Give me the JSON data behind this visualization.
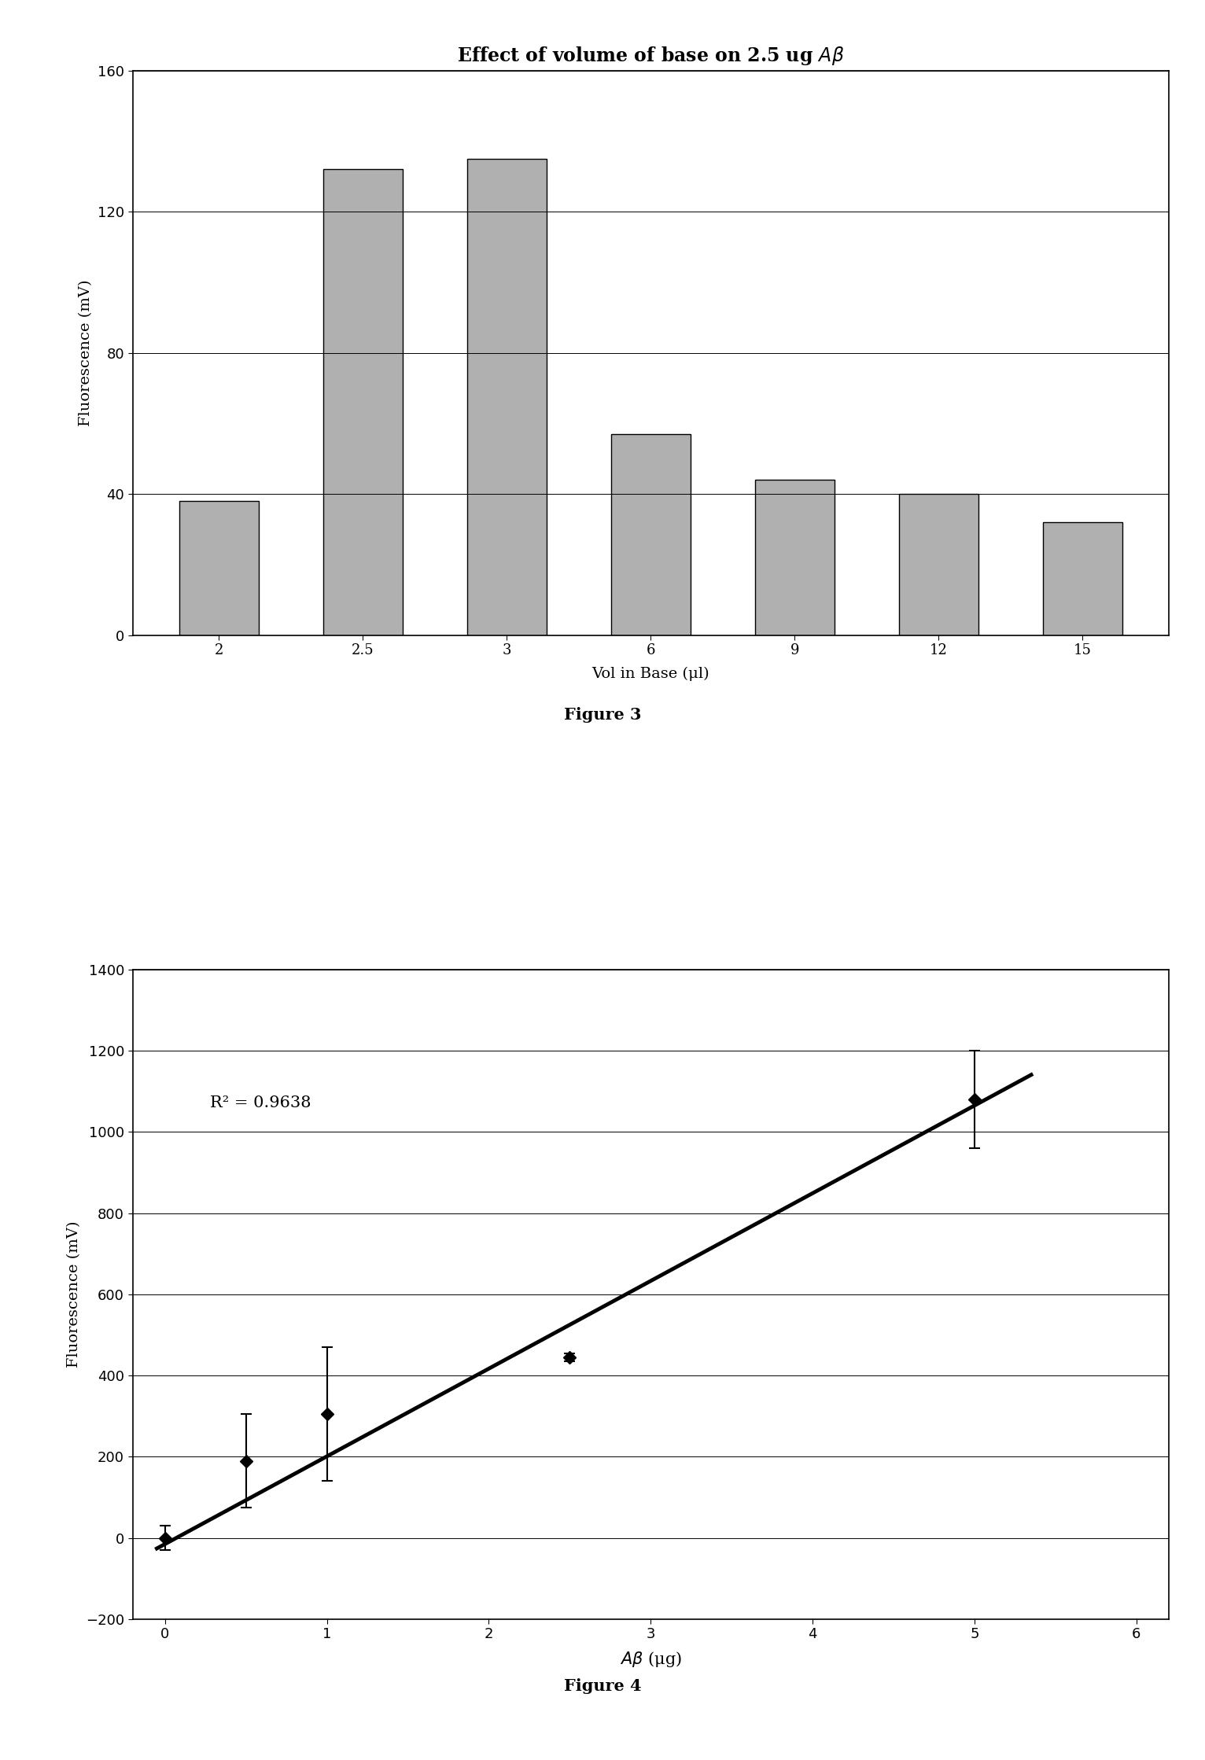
{
  "fig1": {
    "title": "Effect of volume of base on 2.5 ug $A\\beta$",
    "xlabel": "Vol in Base (μl)",
    "ylabel": "Fluorescence (mV)",
    "categories": [
      "2",
      "2.5",
      "3",
      "6",
      "9",
      "12",
      "15"
    ],
    "values": [
      38,
      132,
      135,
      57,
      44,
      40,
      32
    ],
    "ylim": [
      0,
      160
    ],
    "yticks": [
      0,
      40,
      80,
      120,
      160
    ],
    "bar_color": "#b0b0b0",
    "bar_edge_color": "#000000",
    "figure_label": "Figure 3"
  },
  "fig2": {
    "xlabel": "$A\\beta$ (μg)",
    "ylabel": "Fluorescence (mV)",
    "x": [
      0,
      0.5,
      1.0,
      2.5,
      5.0
    ],
    "y": [
      0,
      190,
      305,
      445,
      1080
    ],
    "yerr": [
      30,
      115,
      165,
      10,
      120
    ],
    "xlim": [
      -0.2,
      6.2
    ],
    "ylim": [
      -200,
      1400
    ],
    "yticks": [
      -200,
      0,
      200,
      400,
      600,
      800,
      1000,
      1200,
      1400
    ],
    "xticks": [
      0,
      1,
      2,
      3,
      4,
      5,
      6
    ],
    "r2_text": "R² = 0.9638",
    "slope": 216.0,
    "intercept": -15.0,
    "line_x_start": -0.05,
    "line_x_end": 5.35,
    "figure_label": "Figure 4"
  },
  "background_color": "#ffffff"
}
